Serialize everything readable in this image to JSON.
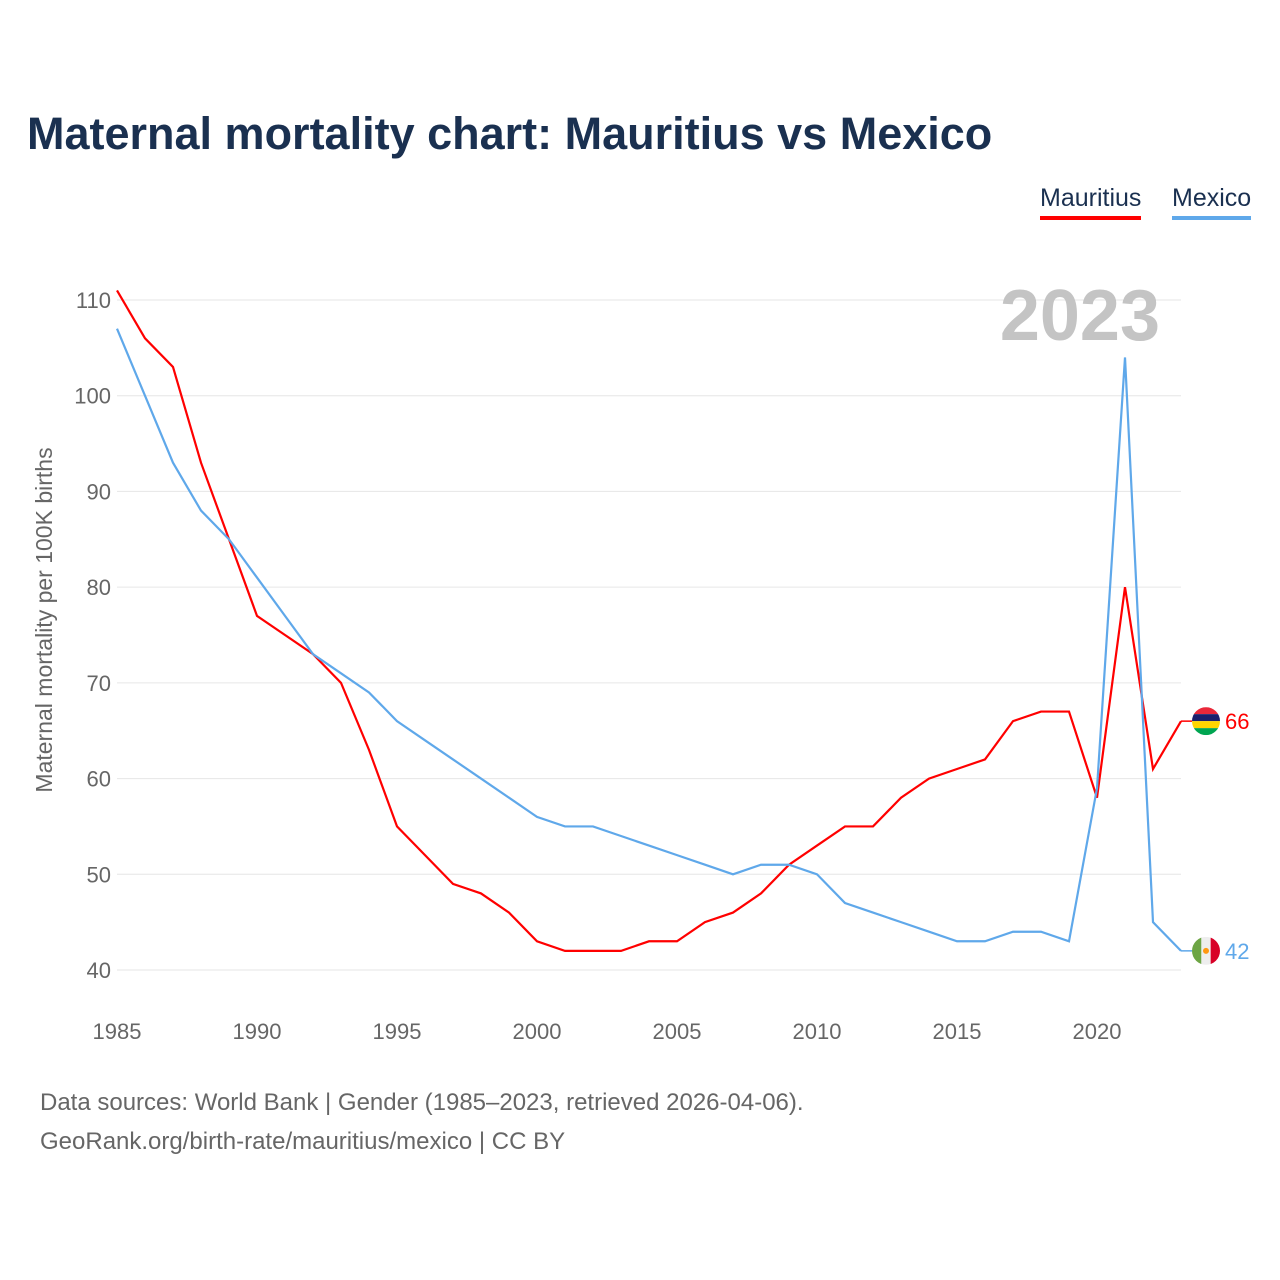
{
  "title": "Maternal mortality chart: Mauritius vs Mexico",
  "footer": {
    "line1": "Data sources: World Bank | Gender (1985–2023, retrieved 2026-04-06).",
    "line2": "GeoRank.org/birth-rate/mauritius/mexico | CC BY"
  },
  "chart_data": {
    "type": "line",
    "title": "Maternal mortality chart: Mauritius vs Mexico",
    "ylabel": "Maternal mortality per 100K births",
    "xlabel": "",
    "year_label": "2023",
    "xlim": [
      1985,
      2023
    ],
    "ylim": [
      40,
      110
    ],
    "xticks": [
      "1985",
      "1990",
      "1995",
      "2000",
      "2005",
      "2010",
      "2015",
      "2020"
    ],
    "yticks": [
      "40",
      "50",
      "60",
      "70",
      "80",
      "90",
      "100",
      "110"
    ],
    "grid": true,
    "legend": "top-right",
    "x": [
      1985,
      1986,
      1987,
      1988,
      1989,
      1990,
      1991,
      1992,
      1993,
      1994,
      1995,
      1996,
      1997,
      1998,
      1999,
      2000,
      2001,
      2002,
      2003,
      2004,
      2005,
      2006,
      2007,
      2008,
      2009,
      2010,
      2011,
      2012,
      2013,
      2014,
      2015,
      2016,
      2017,
      2018,
      2019,
      2020,
      2021,
      2022,
      2023
    ],
    "series": [
      {
        "name": "Mauritius",
        "color": "#ff0000",
        "end_label": "66",
        "values": [
          111,
          106,
          103,
          93,
          85,
          77,
          75,
          73,
          70,
          63,
          55,
          52,
          49,
          48,
          46,
          43,
          42,
          42,
          42,
          43,
          43,
          45,
          46,
          48,
          51,
          53,
          55,
          55,
          58,
          60,
          61,
          62,
          66,
          67,
          67,
          58,
          80,
          61,
          66
        ]
      },
      {
        "name": "Mexico",
        "color": "#5fa8ea",
        "end_label": "42",
        "values": [
          107,
          100,
          93,
          88,
          85,
          81,
          77,
          73,
          71,
          69,
          66,
          64,
          62,
          60,
          58,
          56,
          55,
          55,
          54,
          53,
          52,
          51,
          50,
          51,
          51,
          50,
          47,
          46,
          45,
          44,
          43,
          43,
          44,
          44,
          43,
          59,
          104,
          45,
          42
        ]
      }
    ]
  }
}
